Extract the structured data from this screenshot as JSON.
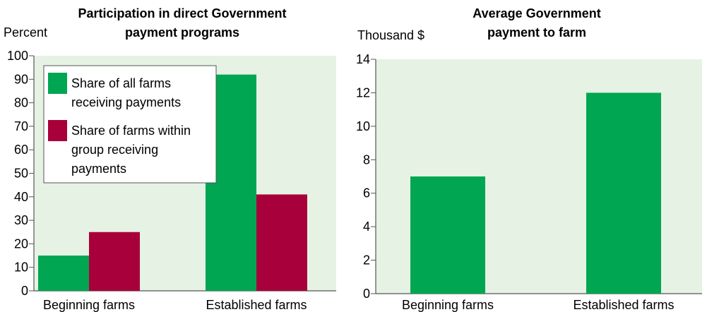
{
  "colors": {
    "plot_bg": "#e6f2e4",
    "green": "#00a651",
    "red": "#a8003a",
    "axis": "#555555"
  },
  "chart_data": [
    {
      "type": "bar",
      "title": [
        "Participation in direct Government",
        "payment programs"
      ],
      "ylabel": "Percent",
      "ylim": [
        0,
        100
      ],
      "yticks": [
        0,
        10,
        20,
        30,
        40,
        50,
        60,
        70,
        80,
        90,
        100
      ],
      "categories": [
        "Beginning farms",
        "Established farms"
      ],
      "series": [
        {
          "name": [
            "Share of all farms",
            "receiving payments"
          ],
          "color": "#00a651",
          "values": [
            15,
            92
          ]
        },
        {
          "name": [
            "Share of farms within",
            "group receiving",
            "payments"
          ],
          "color": "#a8003a",
          "values": [
            25,
            41
          ]
        }
      ],
      "legend": "top-left",
      "grid": false
    },
    {
      "type": "bar",
      "title": [
        "Average Government",
        "payment to farm"
      ],
      "ylabel": "Thousand $",
      "ylim": [
        0,
        14
      ],
      "yticks": [
        0,
        2,
        4,
        6,
        8,
        10,
        12,
        14
      ],
      "categories": [
        "Beginning farms",
        "Established farms"
      ],
      "series": [
        {
          "color": "#00a651",
          "values": [
            7,
            12
          ]
        }
      ],
      "legend": "none",
      "grid": false
    }
  ]
}
